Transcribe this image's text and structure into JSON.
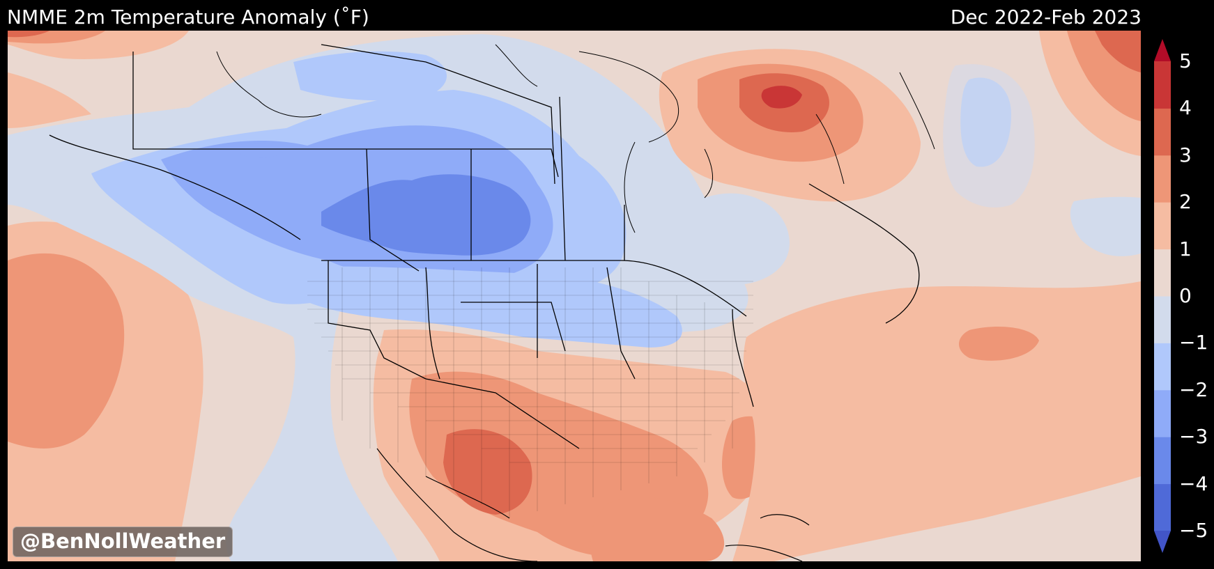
{
  "header": {
    "title": "NMME 2m Temperature Anomaly (˚F)",
    "period": "Dec 2022-Feb 2023"
  },
  "watermark": "@BenNollWeather",
  "colorbar": {
    "tick_labels": [
      "5",
      "4",
      "3",
      "2",
      "1",
      "0",
      "−1",
      "−2",
      "−3",
      "−4",
      "−5"
    ],
    "bins": [
      {
        "from": "-5",
        "to": "-4",
        "color": "#4f6ad8"
      },
      {
        "from": "-4",
        "to": "-3",
        "color": "#6a89ea"
      },
      {
        "from": "-3",
        "to": "-2",
        "color": "#8fabf8"
      },
      {
        "from": "-2",
        "to": "-1",
        "color": "#b0c8fb"
      },
      {
        "from": "-1",
        "to": "0",
        "color": "#d2dbec"
      },
      {
        "from": "0",
        "to": "1",
        "color": "#ead8d0"
      },
      {
        "from": "1",
        "to": "2",
        "color": "#f5bca2"
      },
      {
        "from": "2",
        "to": "3",
        "color": "#ee9677"
      },
      {
        "from": "3",
        "to": "4",
        "color": "#dd6850"
      },
      {
        "from": "4",
        "to": "5",
        "color": "#c93636"
      }
    ],
    "extend_low_color": "#4255c8",
    "extend_high_color": "#b20c28"
  }
}
